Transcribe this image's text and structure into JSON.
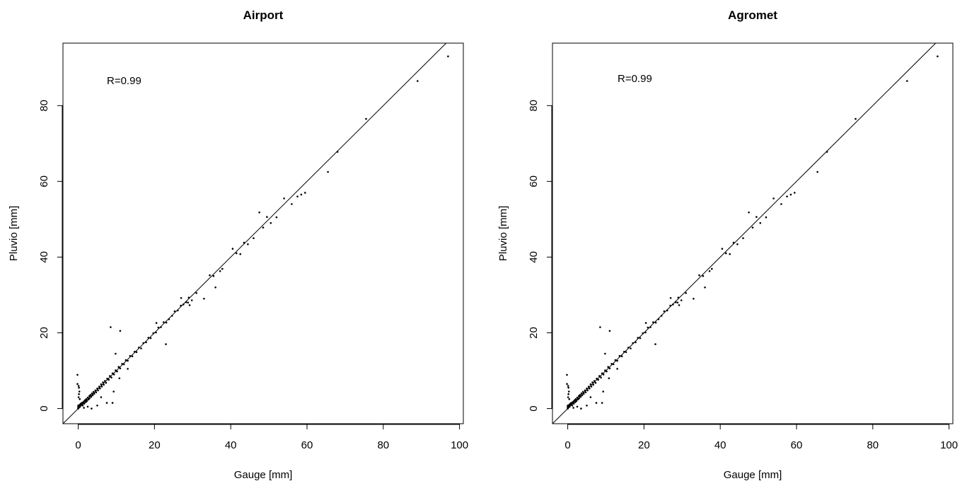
{
  "chart_data": [
    {
      "type": "scatter",
      "title": "Airport",
      "xlabel": "Gauge [mm]",
      "ylabel": "Pluvio [mm]",
      "annotation": "R=0.99",
      "xlim": [
        -4,
        101
      ],
      "ylim": [
        -4,
        96.5
      ],
      "xticks": [
        0,
        20,
        40,
        60,
        80,
        100
      ],
      "yticks": [
        0,
        20,
        40,
        60,
        80
      ],
      "reference_line": "1:1",
      "grid": false,
      "point_color": "#000000",
      "points": [
        [
          0,
          0
        ],
        [
          0,
          0.1
        ],
        [
          0,
          0.2
        ],
        [
          0.05,
          0.3
        ],
        [
          0.1,
          0.4
        ],
        [
          0,
          0.5
        ],
        [
          0.1,
          0.6
        ],
        [
          0,
          0.8
        ],
        [
          0.2,
          0.3
        ],
        [
          0.3,
          0.5
        ],
        [
          0.3,
          0.7
        ],
        [
          0.4,
          1.0
        ],
        [
          0.5,
          0.5
        ],
        [
          0.6,
          1.2
        ],
        [
          0.7,
          0.9
        ],
        [
          0.8,
          1.4
        ],
        [
          1.0,
          1.1
        ],
        [
          1.1,
          1.6
        ],
        [
          1.2,
          0.8
        ],
        [
          1.3,
          1.5
        ],
        [
          1.5,
          1.9
        ],
        [
          1.6,
          1.3
        ],
        [
          1.8,
          2.2
        ],
        [
          2.0,
          1.7
        ],
        [
          2.1,
          2.5
        ],
        [
          2.3,
          2.0
        ],
        [
          2.5,
          2.9
        ],
        [
          2.7,
          2.4
        ],
        [
          2.9,
          3.3
        ],
        [
          3.0,
          2.7
        ],
        [
          3.2,
          3.6
        ],
        [
          3.4,
          3.1
        ],
        [
          3.6,
          4.0
        ],
        [
          3.8,
          3.5
        ],
        [
          4.0,
          4.4
        ],
        [
          4.2,
          3.9
        ],
        [
          4.5,
          4.8
        ],
        [
          4.7,
          4.3
        ],
        [
          5.0,
          5.3
        ],
        [
          5.2,
          4.8
        ],
        [
          5.5,
          5.8
        ],
        [
          5.7,
          5.3
        ],
        [
          6.0,
          6.4
        ],
        [
          6.2,
          5.8
        ],
        [
          6.5,
          6.9
        ],
        [
          6.7,
          6.3
        ],
        [
          7.0,
          7.3
        ],
        [
          7.3,
          6.8
        ],
        [
          7.6,
          7.9
        ],
        [
          8.0,
          7.6
        ],
        [
          8.3,
          8.6
        ],
        [
          8.7,
          8.2
        ],
        [
          9.0,
          9.3
        ],
        [
          9.4,
          9.0
        ],
        [
          9.8,
          10.1
        ],
        [
          10.2,
          9.8
        ],
        [
          10.6,
          11.0
        ],
        [
          11.0,
          10.6
        ],
        [
          11.5,
          11.8
        ],
        [
          12.0,
          11.7
        ],
        [
          12.5,
          12.8
        ],
        [
          13.0,
          12.6
        ],
        [
          13.6,
          13.9
        ],
        [
          14.2,
          13.8
        ],
        [
          14.8,
          15.0
        ],
        [
          15.3,
          14.9
        ],
        [
          15.9,
          16.1
        ],
        [
          16.5,
          15.9
        ],
        [
          17.1,
          17.3
        ],
        [
          17.8,
          17.5
        ],
        [
          18.4,
          18.7
        ],
        [
          19.0,
          18.6
        ],
        [
          19.7,
          19.9
        ],
        [
          20.4,
          20.1
        ],
        [
          21.0,
          21.4
        ],
        [
          21.7,
          21.5
        ],
        [
          22.4,
          22.8
        ],
        [
          23.1,
          22.7
        ],
        [
          23.8,
          23.6
        ],
        [
          24.6,
          24.5
        ],
        [
          25.3,
          25.7
        ],
        [
          26.1,
          25.9
        ],
        [
          26.9,
          27.2
        ],
        [
          27.6,
          27.5
        ],
        [
          28.3,
          28.1
        ],
        [
          29.0,
          29.3
        ],
        [
          29.8,
          28.6
        ],
        [
          31.0,
          30.5
        ],
        [
          33.0,
          29.0
        ],
        [
          34.5,
          35.2
        ],
        [
          35.5,
          35.0
        ],
        [
          36.0,
          32.0
        ],
        [
          37.2,
          36.3
        ],
        [
          37.8,
          36.9
        ],
        [
          40.5,
          42.2
        ],
        [
          41.5,
          41.0
        ],
        [
          42.5,
          40.8
        ],
        [
          43.5,
          43.8
        ],
        [
          44.5,
          43.4
        ],
        [
          46.0,
          45.0
        ],
        [
          47.5,
          51.8
        ],
        [
          48.5,
          47.8
        ],
        [
          49.5,
          50.6
        ],
        [
          50.5,
          49.0
        ],
        [
          52.0,
          50.5
        ],
        [
          54.0,
          55.5
        ],
        [
          56.0,
          54.0
        ],
        [
          57.5,
          56.0
        ],
        [
          58.5,
          56.5
        ],
        [
          59.5,
          57.0
        ],
        [
          65.5,
          62.5
        ],
        [
          68.0,
          67.8
        ],
        [
          75.5,
          76.5
        ],
        [
          89.0,
          86.5
        ],
        [
          97.0,
          93.0
        ],
        [
          -0.2,
          8.9
        ],
        [
          -0.2,
          6.5
        ],
        [
          0.1,
          6.0
        ],
        [
          0.2,
          5.5
        ],
        [
          0.3,
          4.5
        ],
        [
          0.2,
          3.8
        ],
        [
          0.1,
          3.0
        ],
        [
          0.4,
          2.5
        ],
        [
          1.5,
          0.2
        ],
        [
          2.5,
          0.5
        ],
        [
          3.5,
          0.0
        ],
        [
          5.0,
          0.8
        ],
        [
          6.0,
          3.0
        ],
        [
          7.5,
          1.5
        ],
        [
          9.0,
          1.5
        ],
        [
          8.5,
          21.5
        ],
        [
          11.0,
          20.5
        ],
        [
          9.8,
          14.5
        ],
        [
          9.3,
          4.5
        ],
        [
          10.8,
          8.0
        ],
        [
          13.0,
          10.5
        ],
        [
          20.5,
          22.6
        ],
        [
          23.0,
          17.0
        ],
        [
          27.0,
          29.2
        ],
        [
          28.8,
          28.0
        ],
        [
          29.2,
          27.3
        ]
      ]
    },
    {
      "type": "scatter",
      "title": "Agromet",
      "xlabel": "Gauge [mm]",
      "ylabel": "Pluvio [mm]",
      "annotation": "R=0.99",
      "xlim": [
        -4,
        101
      ],
      "ylim": [
        -4,
        96.5
      ],
      "xticks": [
        0,
        20,
        40,
        60,
        80,
        100
      ],
      "yticks": [
        0,
        20,
        40,
        60,
        80
      ],
      "reference_line": "1:1",
      "grid": false,
      "point_color": "#000000",
      "points": [
        [
          0,
          0
        ],
        [
          0,
          0.1
        ],
        [
          0,
          0.2
        ],
        [
          0.05,
          0.3
        ],
        [
          0.1,
          0.4
        ],
        [
          0,
          0.5
        ],
        [
          0.1,
          0.6
        ],
        [
          0,
          0.8
        ],
        [
          0.2,
          0.3
        ],
        [
          0.3,
          0.5
        ],
        [
          0.3,
          0.7
        ],
        [
          0.4,
          1.0
        ],
        [
          0.5,
          0.5
        ],
        [
          0.6,
          1.2
        ],
        [
          0.7,
          0.9
        ],
        [
          0.8,
          1.4
        ],
        [
          1.0,
          1.1
        ],
        [
          1.1,
          1.6
        ],
        [
          1.2,
          0.8
        ],
        [
          1.3,
          1.5
        ],
        [
          1.5,
          1.9
        ],
        [
          1.6,
          1.3
        ],
        [
          1.8,
          2.2
        ],
        [
          2.0,
          1.7
        ],
        [
          2.1,
          2.5
        ],
        [
          2.3,
          2.0
        ],
        [
          2.5,
          2.9
        ],
        [
          2.7,
          2.4
        ],
        [
          2.9,
          3.3
        ],
        [
          3.0,
          2.7
        ],
        [
          3.2,
          3.6
        ],
        [
          3.4,
          3.1
        ],
        [
          3.6,
          4.0
        ],
        [
          3.8,
          3.5
        ],
        [
          4.0,
          4.4
        ],
        [
          4.2,
          3.9
        ],
        [
          4.5,
          4.8
        ],
        [
          4.7,
          4.3
        ],
        [
          5.0,
          5.3
        ],
        [
          5.2,
          4.8
        ],
        [
          5.5,
          5.8
        ],
        [
          5.7,
          5.3
        ],
        [
          6.0,
          6.4
        ],
        [
          6.2,
          5.8
        ],
        [
          6.5,
          6.9
        ],
        [
          6.7,
          6.3
        ],
        [
          7.0,
          7.3
        ],
        [
          7.3,
          6.8
        ],
        [
          7.6,
          7.9
        ],
        [
          8.0,
          7.6
        ],
        [
          8.3,
          8.6
        ],
        [
          8.7,
          8.2
        ],
        [
          9.0,
          9.3
        ],
        [
          9.4,
          9.0
        ],
        [
          9.8,
          10.1
        ],
        [
          10.2,
          9.8
        ],
        [
          10.6,
          11.0
        ],
        [
          11.0,
          10.6
        ],
        [
          11.5,
          11.8
        ],
        [
          12.0,
          11.7
        ],
        [
          12.5,
          12.8
        ],
        [
          13.0,
          12.6
        ],
        [
          13.6,
          13.9
        ],
        [
          14.2,
          13.8
        ],
        [
          14.8,
          15.0
        ],
        [
          15.3,
          14.9
        ],
        [
          15.9,
          16.1
        ],
        [
          16.5,
          15.9
        ],
        [
          17.1,
          17.3
        ],
        [
          17.8,
          17.5
        ],
        [
          18.4,
          18.7
        ],
        [
          19.0,
          18.6
        ],
        [
          19.7,
          19.9
        ],
        [
          20.4,
          20.1
        ],
        [
          21.0,
          21.4
        ],
        [
          21.7,
          21.5
        ],
        [
          22.4,
          22.8
        ],
        [
          23.1,
          22.7
        ],
        [
          23.8,
          23.6
        ],
        [
          24.6,
          24.5
        ],
        [
          25.3,
          25.7
        ],
        [
          26.1,
          25.9
        ],
        [
          26.9,
          27.2
        ],
        [
          27.6,
          27.5
        ],
        [
          28.3,
          28.1
        ],
        [
          29.0,
          29.3
        ],
        [
          29.8,
          28.6
        ],
        [
          31.0,
          30.5
        ],
        [
          33.0,
          29.0
        ],
        [
          34.5,
          35.2
        ],
        [
          35.5,
          35.0
        ],
        [
          36.0,
          32.0
        ],
        [
          37.2,
          36.3
        ],
        [
          37.8,
          36.9
        ],
        [
          40.5,
          42.2
        ],
        [
          41.5,
          41.0
        ],
        [
          42.5,
          40.8
        ],
        [
          43.5,
          43.8
        ],
        [
          44.5,
          43.4
        ],
        [
          46.0,
          45.0
        ],
        [
          47.5,
          51.8
        ],
        [
          48.5,
          47.8
        ],
        [
          49.5,
          50.6
        ],
        [
          50.5,
          49.0
        ],
        [
          52.0,
          50.5
        ],
        [
          54.0,
          55.5
        ],
        [
          56.0,
          54.0
        ],
        [
          57.5,
          56.0
        ],
        [
          58.5,
          56.5
        ],
        [
          59.5,
          57.0
        ],
        [
          65.5,
          62.5
        ],
        [
          68.0,
          67.8
        ],
        [
          75.5,
          76.5
        ],
        [
          89.0,
          86.5
        ],
        [
          97.0,
          93.0
        ],
        [
          -0.2,
          8.9
        ],
        [
          -0.2,
          6.5
        ],
        [
          0.1,
          6.0
        ],
        [
          0.2,
          5.5
        ],
        [
          0.3,
          4.5
        ],
        [
          0.2,
          3.8
        ],
        [
          0.1,
          3.0
        ],
        [
          0.4,
          2.5
        ],
        [
          1.5,
          0.2
        ],
        [
          2.5,
          0.5
        ],
        [
          3.5,
          0.0
        ],
        [
          5.0,
          0.8
        ],
        [
          6.0,
          3.0
        ],
        [
          7.5,
          1.5
        ],
        [
          9.0,
          1.5
        ],
        [
          8.5,
          21.5
        ],
        [
          11.0,
          20.5
        ],
        [
          9.8,
          14.5
        ],
        [
          9.3,
          4.5
        ],
        [
          10.8,
          8.0
        ],
        [
          13.0,
          10.5
        ],
        [
          20.5,
          22.6
        ],
        [
          23.0,
          17.0
        ],
        [
          27.0,
          29.2
        ],
        [
          28.8,
          28.0
        ],
        [
          29.2,
          27.3
        ]
      ]
    }
  ]
}
